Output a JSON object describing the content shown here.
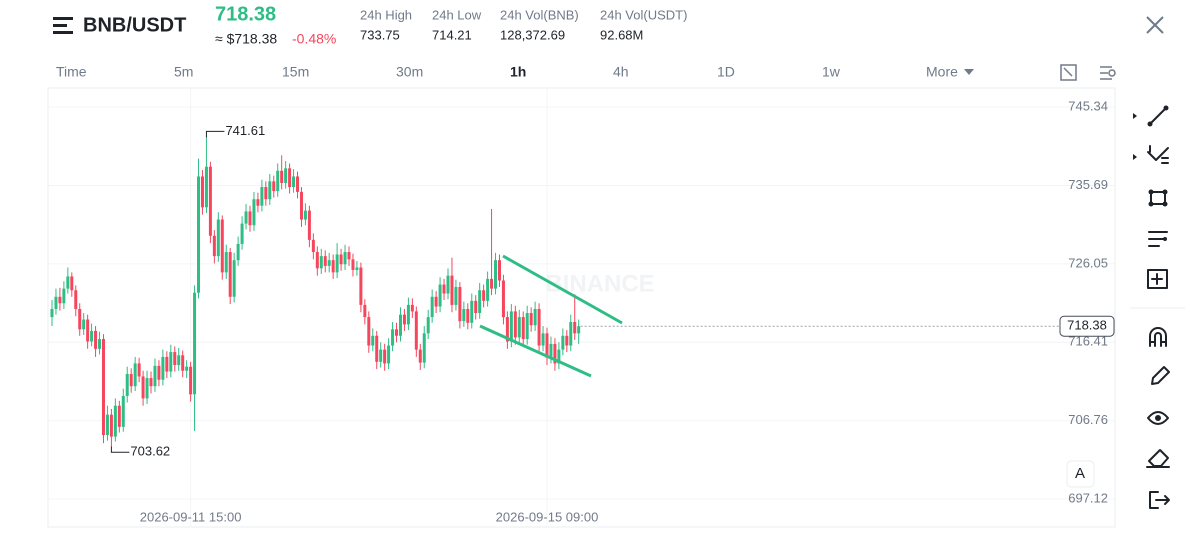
{
  "header": {
    "pair": "BNB/USDT",
    "price": "718.38",
    "approx": "≈ $718.38",
    "change": "-0.48%",
    "stats": [
      {
        "label": "24h High",
        "value": "733.75"
      },
      {
        "label": "24h Low",
        "value": "714.21"
      },
      {
        "label": "24h Vol(BNB)",
        "value": "128,372.69"
      },
      {
        "label": "24h Vol(USDT)",
        "value": "92.68M"
      }
    ]
  },
  "tabs": [
    "Time",
    "5m",
    "15m",
    "30m",
    "1h",
    "4h",
    "1D",
    "1w",
    "More"
  ],
  "chart_data": {
    "type": "candlestick",
    "watermark": "BINANCE",
    "scale_button": "A",
    "up_color": "#2ebd85",
    "down_color": "#f6465d",
    "grid": true,
    "categories": [
      null,
      null,
      null,
      null,
      null,
      null,
      null,
      null,
      null,
      null,
      null,
      null,
      null,
      null,
      null,
      null,
      null,
      null,
      null,
      null,
      null,
      null,
      null,
      null,
      null,
      null,
      null,
      null,
      null,
      null,
      null,
      null,
      null,
      null,
      null,
      "2026-09-11 15:00",
      null,
      null,
      null,
      null,
      null,
      null,
      null,
      null,
      null,
      null,
      null,
      null,
      null,
      null,
      null,
      null,
      null,
      null,
      null,
      null,
      null,
      null,
      null,
      null,
      null,
      null,
      null,
      null,
      null,
      null,
      null,
      null,
      null,
      null,
      null,
      null,
      null,
      null,
      null,
      null,
      null,
      null,
      null,
      null,
      null,
      null,
      null,
      null,
      null,
      null,
      null,
      null,
      null,
      null,
      null,
      null,
      null,
      null,
      null,
      null,
      null,
      null,
      null,
      null,
      null,
      null,
      null,
      null,
      null,
      null,
      null,
      null,
      null,
      null,
      null,
      null,
      null,
      null,
      null,
      null,
      null,
      null,
      null,
      null,
      null,
      null,
      null,
      null,
      null,
      "2026-09-15 09:00",
      null,
      null,
      null,
      null,
      null,
      null,
      null,
      null
    ],
    "open": [
      719.5,
      720.5,
      722.0,
      721.2,
      723.0,
      724.5,
      722.8,
      720.5,
      718.0,
      719.2,
      716.5,
      717.8,
      715.6,
      716.8,
      705.0,
      707.5,
      704.8,
      708.6,
      706.0,
      709.8,
      712.5,
      711.0,
      713.8,
      712.2,
      709.5,
      712.0,
      711.0,
      713.5,
      711.8,
      714.6,
      712.8,
      715.2,
      713.6,
      714.8,
      712.9,
      713.4,
      710.0,
      722.5,
      736.8,
      733.0,
      738.0,
      729.5,
      727.0,
      731.5,
      725.0,
      727.5,
      722.0,
      726.5,
      728.5,
      731.0,
      732.5,
      730.8,
      734.0,
      733.2,
      735.5,
      734.0,
      736.2,
      735.0,
      737.5,
      736.0,
      737.8,
      735.5,
      736.8,
      734.9,
      731.5,
      732.6,
      729.0,
      727.5,
      725.5,
      727.0,
      725.8,
      726.5,
      725.0,
      727.2,
      726.0,
      727.5,
      726.6,
      725.3,
      725.6,
      721.0,
      719.5,
      716.0,
      717.2,
      714.0,
      715.5,
      713.8,
      716.0,
      718.0,
      717.2,
      719.8,
      718.6,
      721.0,
      720.2,
      715.5,
      713.9,
      717.5,
      719.5,
      722.0,
      720.8,
      723.5,
      722.4,
      724.6,
      721.0,
      723.2,
      719.0,
      720.5,
      718.8,
      721.5,
      720.0,
      722.8,
      721.5,
      724.2,
      723.0,
      726.5,
      724.0,
      719.5,
      716.5,
      720.2,
      717.0,
      719.5,
      716.8,
      720.0,
      718.5,
      720.5,
      716.0,
      717.5,
      714.5,
      716.2,
      713.8,
      715.5,
      717.2,
      716.0,
      718.9,
      717.5
    ],
    "high": [
      721.6,
      723.0,
      723.1,
      723.9,
      725.6,
      725.0,
      723.4,
      721.2,
      720.0,
      719.8,
      718.7,
      718.4,
      717.7,
      717.4,
      708.6,
      708.2,
      709.5,
      709.2,
      710.7,
      713.4,
      713.2,
      714.6,
      714.5,
      712.9,
      712.9,
      712.8,
      714.4,
      714.2,
      715.5,
      715.3,
      716.1,
      715.9,
      715.7,
      715.4,
      714.2,
      714.0,
      723.4,
      739.0,
      737.6,
      741.61,
      738.6,
      730.2,
      732.4,
      732.0,
      728.4,
      728.0,
      727.4,
      729.4,
      731.9,
      733.4,
      733.2,
      734.9,
      734.8,
      736.4,
      736.2,
      737.1,
      736.9,
      738.4,
      739.4,
      738.7,
      738.4,
      737.7,
      737.4,
      735.5,
      733.5,
      733.2,
      729.8,
      728.2,
      727.9,
      727.7,
      727.4,
      727.2,
      728.6,
      727.9,
      728.4,
      728.2,
      727.3,
      726.4,
      726.2,
      721.7,
      720.2,
      718.1,
      717.8,
      716.4,
      716.2,
      716.9,
      718.9,
      718.8,
      720.7,
      720.5,
      721.9,
      721.8,
      720.8,
      716.2,
      718.4,
      720.4,
      722.9,
      722.7,
      724.4,
      724.2,
      725.5,
      726.8,
      724.1,
      723.8,
      721.4,
      721.2,
      722.4,
      722.2,
      723.7,
      723.5,
      725.1,
      732.8,
      727.4,
      727.2,
      724.7,
      720.2,
      721.1,
      720.9,
      720.4,
      720.2,
      720.9,
      720.7,
      721.4,
      721.2,
      718.4,
      718.2,
      717.1,
      716.9,
      716.4,
      718.1,
      717.9,
      719.8,
      722.3,
      719.2
    ],
    "low": [
      718.4,
      719.8,
      720.3,
      720.5,
      722.4,
      722.0,
      719.6,
      717.2,
      717.3,
      715.6,
      715.9,
      714.6,
      714.9,
      704.0,
      704.3,
      703.62,
      704.2,
      705.3,
      705.4,
      709.0,
      710.2,
      710.4,
      711.5,
      708.6,
      708.8,
      710.1,
      710.3,
      711.0,
      711.1,
      712.0,
      712.1,
      712.8,
      712.9,
      712.1,
      712.0,
      709.1,
      705.5,
      721.8,
      732.1,
      732.3,
      728.6,
      726.1,
      726.3,
      724.1,
      724.2,
      721.1,
      721.3,
      725.8,
      727.8,
      730.3,
      730.0,
      730.1,
      732.4,
      732.5,
      733.2,
      733.3,
      734.2,
      734.3,
      735.2,
      735.3,
      734.7,
      734.8,
      734.1,
      730.6,
      730.8,
      728.1,
      726.6,
      724.6,
      724.8,
      725.0,
      725.0,
      724.2,
      724.3,
      725.2,
      725.3,
      725.8,
      724.5,
      724.6,
      720.1,
      718.6,
      715.1,
      715.3,
      713.1,
      713.3,
      712.9,
      713.1,
      715.3,
      716.4,
      716.5,
      717.8,
      717.9,
      719.4,
      714.6,
      713.0,
      713.2,
      716.8,
      718.8,
      720.0,
      720.1,
      721.6,
      721.7,
      720.1,
      720.3,
      718.1,
      718.3,
      718.0,
      718.1,
      719.2,
      719.3,
      720.7,
      720.8,
      722.2,
      722.3,
      723.2,
      718.6,
      715.6,
      715.8,
      716.1,
      716.3,
      715.9,
      716.1,
      717.7,
      717.8,
      715.1,
      715.3,
      713.6,
      713.8,
      712.9,
      713.1,
      714.8,
      715.2,
      715.3,
      716.7,
      716.2
    ],
    "close": [
      720.5,
      722.0,
      721.2,
      723.0,
      724.5,
      722.8,
      720.5,
      718.0,
      719.2,
      716.5,
      717.8,
      715.6,
      716.8,
      705.0,
      707.5,
      704.8,
      708.6,
      706.0,
      709.8,
      712.5,
      711.0,
      713.8,
      712.2,
      709.5,
      712.0,
      711.0,
      713.5,
      711.8,
      714.6,
      712.8,
      715.2,
      713.6,
      714.8,
      712.9,
      713.4,
      710.0,
      722.5,
      736.8,
      733.0,
      738.0,
      729.5,
      727.0,
      731.5,
      725.0,
      727.5,
      722.0,
      726.5,
      728.5,
      731.0,
      732.5,
      730.8,
      734.0,
      733.2,
      735.5,
      734.0,
      736.2,
      735.0,
      737.5,
      736.0,
      737.8,
      735.5,
      736.8,
      734.9,
      731.5,
      732.6,
      729.0,
      727.5,
      725.5,
      727.0,
      725.8,
      726.5,
      725.0,
      727.2,
      726.0,
      727.5,
      726.6,
      725.3,
      725.6,
      721.0,
      719.5,
      716.0,
      717.2,
      714.0,
      715.5,
      713.8,
      716.0,
      718.0,
      717.2,
      719.8,
      718.6,
      721.0,
      720.2,
      715.5,
      713.9,
      717.5,
      719.5,
      722.0,
      720.8,
      723.5,
      722.4,
      724.6,
      721.0,
      723.2,
      719.0,
      720.5,
      718.8,
      721.5,
      720.0,
      722.8,
      721.5,
      724.2,
      723.0,
      726.5,
      724.0,
      719.5,
      716.5,
      720.2,
      717.0,
      719.5,
      716.8,
      720.0,
      718.5,
      720.5,
      716.0,
      717.5,
      714.5,
      716.2,
      713.8,
      715.5,
      717.2,
      716.0,
      718.9,
      717.5,
      718.38
    ],
    "annotations": [
      {
        "value": 741.61
      },
      {
        "value": 703.62
      }
    ],
    "ylim": [
      693.68,
      747.68
    ],
    "yticks": [
      697.12,
      706.76,
      716.41,
      726.05,
      735.69,
      745.34
    ]
  }
}
